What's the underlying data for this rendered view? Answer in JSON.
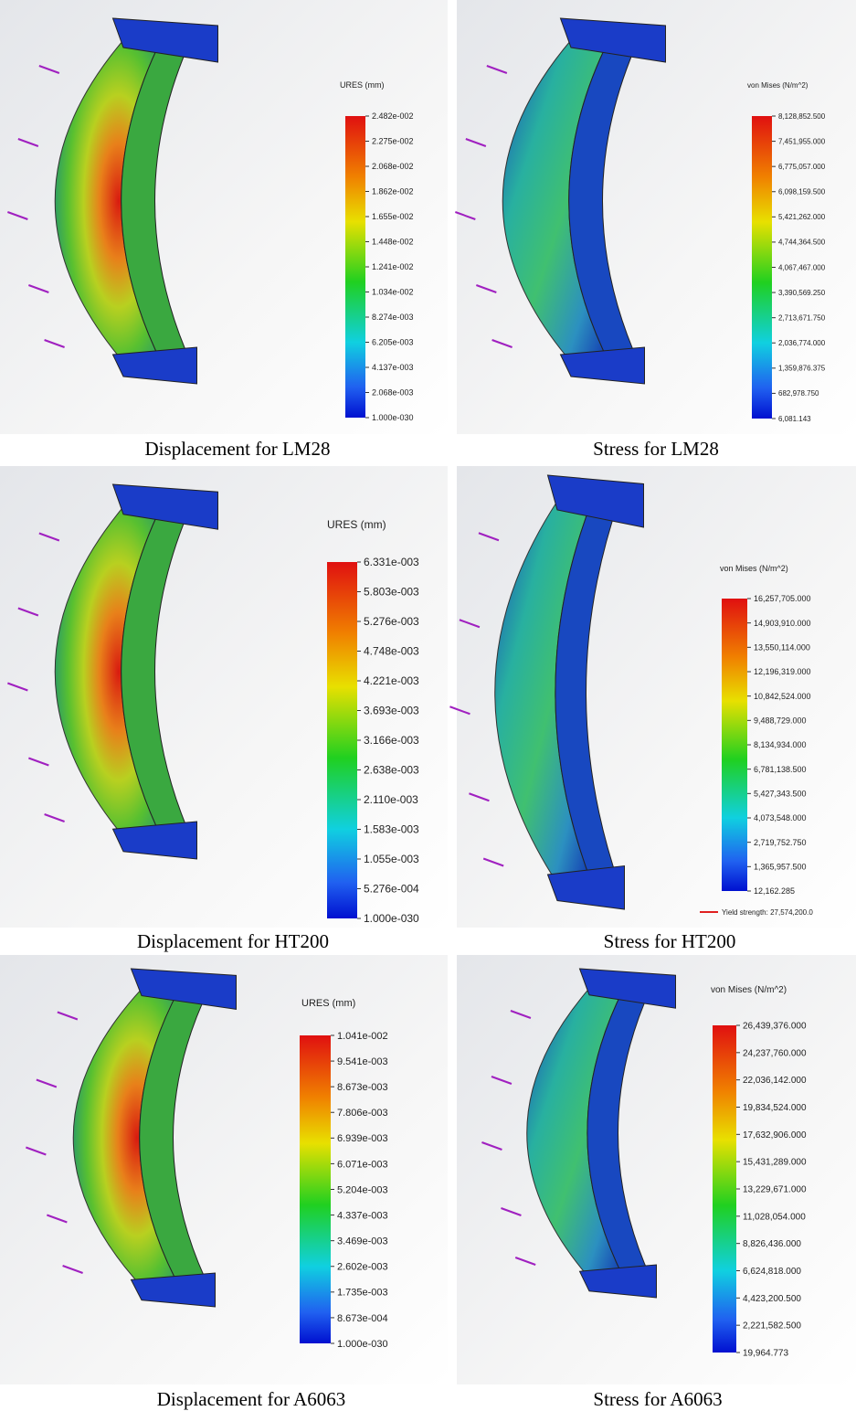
{
  "panels": [
    {
      "legend_title": "URES (mm)",
      "legend_labels": [
        "2.482e-002",
        "2.275e-002",
        "2.068e-002",
        "1.862e-002",
        "1.655e-002",
        "1.448e-002",
        "1.241e-002",
        "1.034e-002",
        "8.274e-003",
        "6.205e-003",
        "4.137e-003",
        "2.068e-003",
        "1.000e-030"
      ],
      "caption": "Displacement for LM28"
    },
    {
      "legend_title": "von Mises (N/m^2)",
      "legend_labels": [
        "8,128,852.500",
        "7,451,955.000",
        "6,775,057.000",
        "6,098,159.500",
        "5,421,262.000",
        "4,744,364.500",
        "4,067,467.000",
        "3,390,569.250",
        "2,713,671.750",
        "2,036,774.000",
        "1,359,876.375",
        "682,978.750",
        "6,081.143"
      ],
      "caption": "Stress for LM28"
    },
    {
      "legend_title": "URES (mm)",
      "legend_labels": [
        "6.331e-003",
        "5.803e-003",
        "5.276e-003",
        "4.748e-003",
        "4.221e-003",
        "3.693e-003",
        "3.166e-003",
        "2.638e-003",
        "2.110e-003",
        "1.583e-003",
        "1.055e-003",
        "5.276e-004",
        "1.000e-030"
      ],
      "caption": "Displacement for HT200"
    },
    {
      "legend_title": "von Mises (N/m^2)",
      "legend_labels": [
        "16,257,705.000",
        "14,903,910.000",
        "13,550,114.000",
        "12,196,319.000",
        "10,842,524.000",
        "9,488,729.000",
        "8,134,934.000",
        "6,781,138.500",
        "5,427,343.500",
        "4,073,548.000",
        "2,719,752.750",
        "1,365,957.500",
        "12,162.285"
      ],
      "caption": "Stress for HT200",
      "yield_label": "Yield strength: 27,574,200.0"
    },
    {
      "legend_title": "URES (mm)",
      "legend_labels": [
        "1.041e-002",
        "9.541e-003",
        "8.673e-003",
        "7.806e-003",
        "6.939e-003",
        "6.071e-003",
        "5.204e-003",
        "4.337e-003",
        "3.469e-003",
        "2.602e-003",
        "1.735e-003",
        "8.673e-004",
        "1.000e-030"
      ],
      "caption": "Displacement for A6063"
    },
    {
      "legend_title": "von Mises (N/m^2)",
      "legend_labels": [
        "26,439,376.000",
        "24,237,760.000",
        "22,036,142.000",
        "19,834,524.000",
        "17,632,906.000",
        "15,431,289.000",
        "13,229,671.000",
        "11,028,054.000",
        "8,826,436.000",
        "6,624,818.000",
        "4,423,200.500",
        "2,221,582.500",
        "19,964.773"
      ],
      "caption": "Stress for A6063"
    }
  ]
}
